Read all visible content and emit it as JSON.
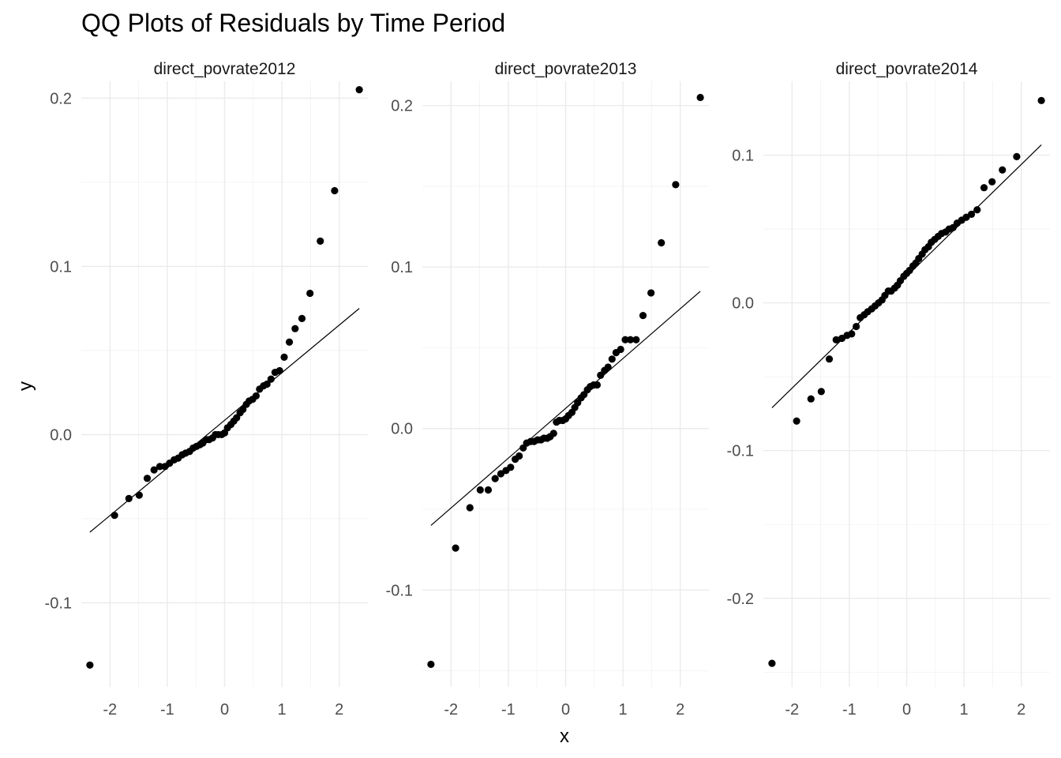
{
  "chart_data": {
    "type": "scatter",
    "title": "QQ Plots of Residuals by Time Period",
    "xlabel": "x",
    "ylabel": "y",
    "grid": true,
    "facets": [
      {
        "label": "direct_povrate2012",
        "xlim": [
          -2.5,
          2.5
        ],
        "ylim": [
          -0.15,
          0.21
        ],
        "x_ticks": [
          -2,
          -1,
          0,
          1,
          2
        ],
        "y_ticks": [
          -0.1,
          0.0,
          0.1,
          0.2
        ],
        "x_tick_labels": [
          "-2",
          "-1",
          "0",
          "1",
          "2"
        ],
        "y_tick_labels": [
          "-0.1",
          "0.0",
          "0.1",
          "0.2"
        ],
        "reference_line": {
          "x": [
            -2.35,
            2.35
          ],
          "y": [
            -0.058,
            0.075
          ]
        },
        "points": {
          "x": [
            -2.35,
            -1.92,
            -1.67,
            -1.49,
            -1.35,
            -1.23,
            -1.13,
            -1.04,
            -0.96,
            -0.88,
            -0.81,
            -0.74,
            -0.68,
            -0.61,
            -0.55,
            -0.49,
            -0.43,
            -0.38,
            -0.32,
            -0.27,
            -0.21,
            -0.16,
            -0.11,
            -0.05,
            0.0,
            0.05,
            0.11,
            0.16,
            0.21,
            0.27,
            0.32,
            0.38,
            0.43,
            0.49,
            0.55,
            0.61,
            0.68,
            0.74,
            0.81,
            0.88,
            0.96,
            1.04,
            1.13,
            1.23,
            1.35,
            1.49,
            1.67,
            1.92,
            2.35
          ],
          "y": [
            -0.137,
            -0.048,
            -0.038,
            -0.036,
            -0.026,
            -0.021,
            -0.019,
            -0.019,
            -0.017,
            -0.015,
            -0.014,
            -0.012,
            -0.011,
            -0.01,
            -0.008,
            -0.007,
            -0.006,
            -0.005,
            -0.003,
            -0.003,
            -0.002,
            0.0,
            0.0,
            0.0,
            0.001,
            0.004,
            0.006,
            0.008,
            0.01,
            0.013,
            0.015,
            0.018,
            0.02,
            0.021,
            0.023,
            0.027,
            0.029,
            0.03,
            0.033,
            0.037,
            0.038,
            0.046,
            0.055,
            0.063,
            0.069,
            0.084,
            0.115,
            0.145,
            0.205
          ]
        }
      },
      {
        "label": "direct_povrate2013",
        "xlim": [
          -2.5,
          2.5
        ],
        "ylim": [
          -0.16,
          0.215
        ],
        "x_ticks": [
          -2,
          -1,
          0,
          1,
          2
        ],
        "y_ticks": [
          -0.1,
          0.0,
          0.1,
          0.2
        ],
        "x_tick_labels": [
          "-2",
          "-1",
          "0",
          "1",
          "2"
        ],
        "y_tick_labels": [
          "-0.1",
          "0.0",
          "0.1",
          "0.2"
        ],
        "reference_line": {
          "x": [
            -2.35,
            2.35
          ],
          "y": [
            -0.06,
            0.085
          ]
        },
        "points": {
          "x": [
            -2.35,
            -1.92,
            -1.67,
            -1.49,
            -1.35,
            -1.23,
            -1.13,
            -1.04,
            -0.96,
            -0.88,
            -0.81,
            -0.74,
            -0.68,
            -0.61,
            -0.55,
            -0.49,
            -0.43,
            -0.38,
            -0.32,
            -0.27,
            -0.21,
            -0.16,
            -0.11,
            -0.05,
            0.0,
            0.05,
            0.11,
            0.16,
            0.21,
            0.27,
            0.32,
            0.38,
            0.43,
            0.49,
            0.55,
            0.61,
            0.68,
            0.74,
            0.81,
            0.88,
            0.96,
            1.04,
            1.13,
            1.23,
            1.35,
            1.49,
            1.67,
            1.92,
            2.35
          ],
          "y": [
            -0.146,
            -0.074,
            -0.049,
            -0.038,
            -0.038,
            -0.031,
            -0.028,
            -0.026,
            -0.024,
            -0.019,
            -0.017,
            -0.012,
            -0.009,
            -0.008,
            -0.008,
            -0.007,
            -0.007,
            -0.006,
            -0.006,
            -0.005,
            -0.003,
            0.004,
            0.005,
            0.005,
            0.006,
            0.008,
            0.01,
            0.013,
            0.016,
            0.019,
            0.021,
            0.024,
            0.026,
            0.027,
            0.027,
            0.033,
            0.036,
            0.038,
            0.043,
            0.047,
            0.049,
            0.055,
            0.055,
            0.055,
            0.07,
            0.084,
            0.115,
            0.151,
            0.205
          ]
        }
      },
      {
        "label": "direct_povrate2014",
        "xlim": [
          -2.5,
          2.5
        ],
        "ylim": [
          -0.26,
          0.15
        ],
        "x_ticks": [
          -2,
          -1,
          0,
          1,
          2
        ],
        "y_ticks": [
          -0.2,
          -0.1,
          0.0,
          0.1
        ],
        "x_tick_labels": [
          "-2",
          "-1",
          "0",
          "1",
          "2"
        ],
        "y_tick_labels": [
          "-0.2",
          "-0.1",
          "0.0",
          "0.1"
        ],
        "reference_line": {
          "x": [
            -2.35,
            2.35
          ],
          "y": [
            -0.071,
            0.107
          ]
        },
        "points": {
          "x": [
            -2.35,
            -1.92,
            -1.67,
            -1.49,
            -1.35,
            -1.23,
            -1.13,
            -1.04,
            -0.96,
            -0.88,
            -0.81,
            -0.74,
            -0.68,
            -0.61,
            -0.55,
            -0.49,
            -0.43,
            -0.38,
            -0.32,
            -0.27,
            -0.21,
            -0.16,
            -0.11,
            -0.05,
            0.0,
            0.05,
            0.11,
            0.16,
            0.21,
            0.27,
            0.32,
            0.38,
            0.43,
            0.49,
            0.55,
            0.61,
            0.68,
            0.74,
            0.81,
            0.88,
            0.96,
            1.04,
            1.13,
            1.23,
            1.35,
            1.49,
            1.67,
            1.92,
            2.35
          ],
          "y": [
            -0.244,
            -0.08,
            -0.065,
            -0.06,
            -0.038,
            -0.025,
            -0.024,
            -0.022,
            -0.021,
            -0.016,
            -0.01,
            -0.008,
            -0.006,
            -0.004,
            -0.002,
            0.0,
            0.002,
            0.005,
            0.008,
            0.008,
            0.01,
            0.012,
            0.015,
            0.018,
            0.02,
            0.022,
            0.025,
            0.027,
            0.03,
            0.033,
            0.036,
            0.038,
            0.041,
            0.043,
            0.045,
            0.047,
            0.048,
            0.05,
            0.051,
            0.054,
            0.056,
            0.058,
            0.06,
            0.063,
            0.078,
            0.082,
            0.09,
            0.099,
            0.137
          ]
        }
      }
    ]
  }
}
